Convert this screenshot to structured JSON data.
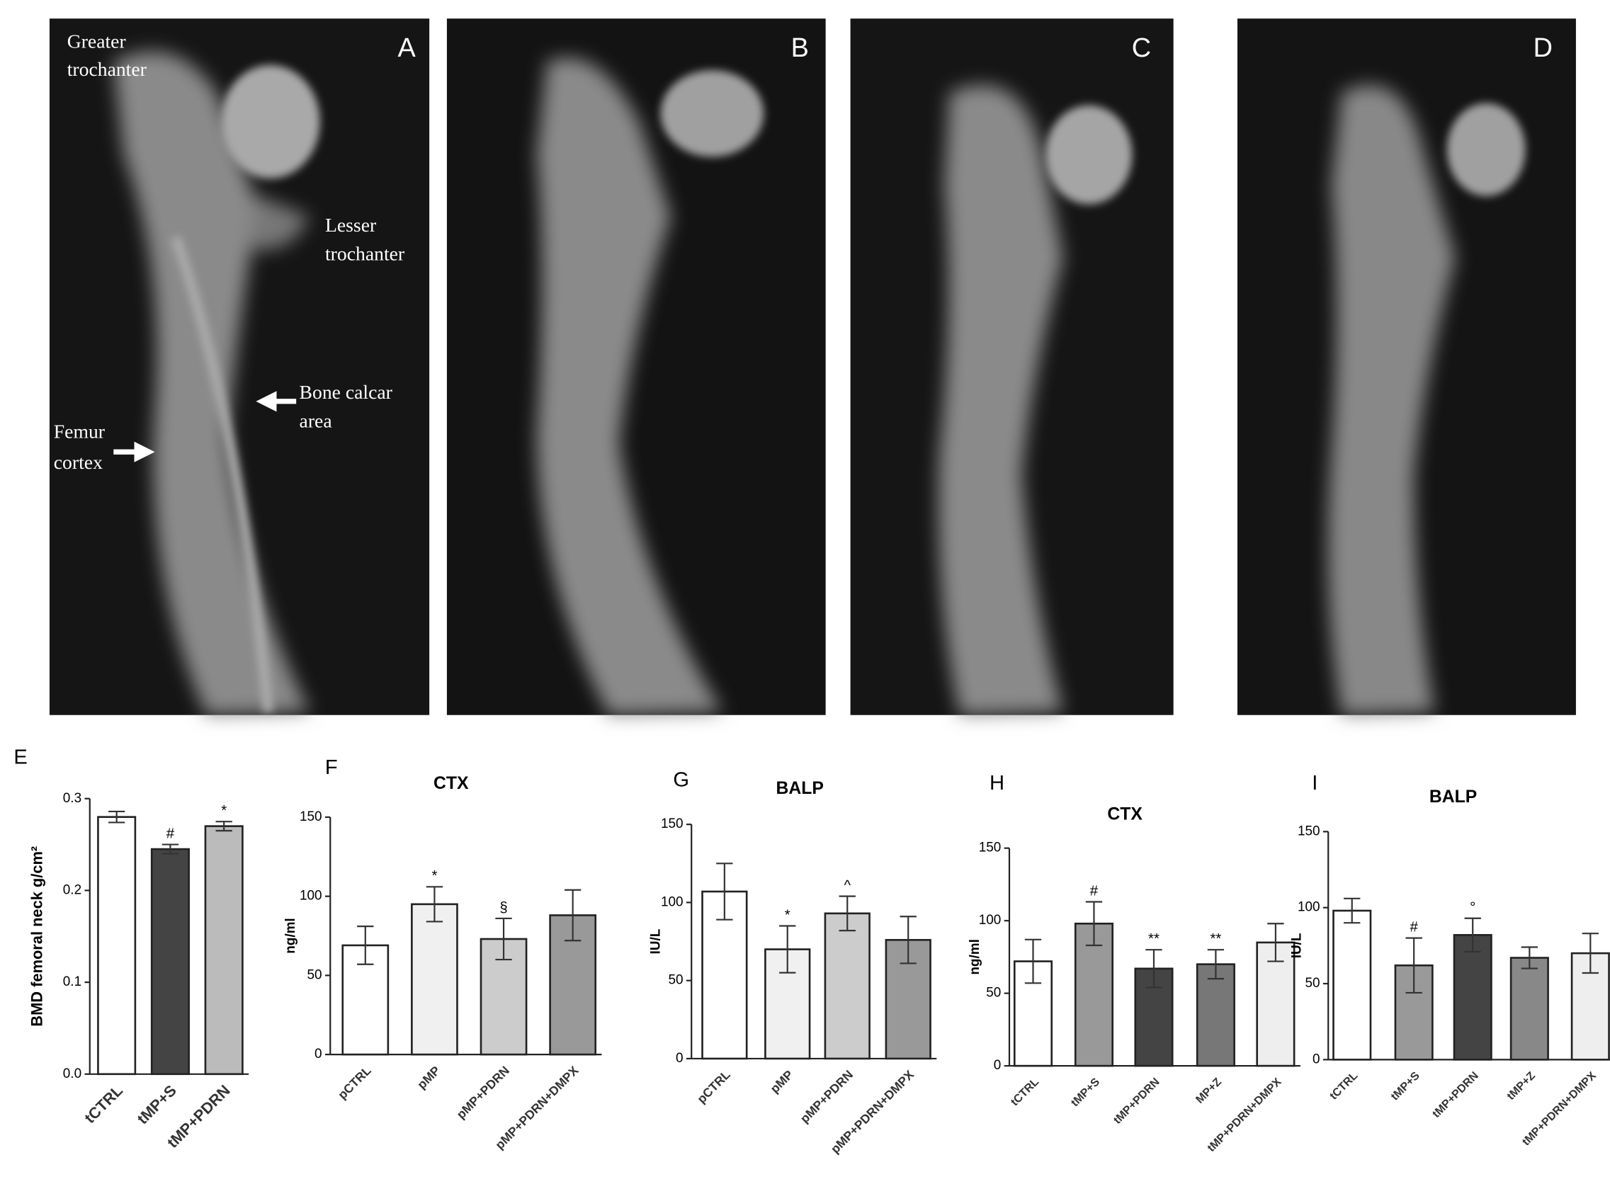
{
  "images": [
    {
      "label": "A",
      "annotations": [
        [
          "Greater",
          "trochanter"
        ],
        [
          "Lesser",
          "trochanter"
        ],
        [
          "Bone calcar",
          "area"
        ],
        [
          "Femur",
          "cortex"
        ]
      ]
    },
    {
      "label": "B"
    },
    {
      "label": "C"
    },
    {
      "label": "D"
    }
  ],
  "chart_data": [
    {
      "type": "bar",
      "panel": "E",
      "ylabel": "BMD femoral neck g/cm²",
      "categories": [
        "tCTRL",
        "tMP+S",
        "tMP+PDRN"
      ],
      "values": [
        0.28,
        0.245,
        0.27
      ],
      "errors": [
        0.006,
        0.005,
        0.005
      ],
      "annotations": [
        null,
        "#",
        "*"
      ],
      "colors": [
        "#ffffff",
        "#444444",
        "#bbbbbb"
      ],
      "ylim": [
        0,
        0.3
      ],
      "yticks": [
        {
          "value": 0,
          "label": "0.0"
        },
        0.1,
        0.2,
        0.3
      ]
    },
    {
      "type": "bar",
      "panel": "F",
      "title": "CTX",
      "ylabel": "ng/ml",
      "categories": [
        "pCTRL",
        "pMP",
        "pMP+PDRN",
        "pMP+PDRN+DMPX"
      ],
      "values": [
        69,
        95,
        73,
        88
      ],
      "errors": [
        12,
        11,
        13,
        16
      ],
      "annotations": [
        null,
        "*",
        "§",
        null
      ],
      "colors": [
        "#ffffff",
        "#f0f0f0",
        "#cccccc",
        "#999999"
      ],
      "ylim": [
        0,
        150
      ],
      "yticks": [
        0,
        50,
        100,
        150
      ]
    },
    {
      "type": "bar",
      "panel": "G",
      "title": "BALP",
      "ylabel": "IU/L",
      "categories": [
        "pCTRL",
        "pMP",
        "pMP+PDRN",
        "pMP+PDRN+DMPX"
      ],
      "values": [
        107,
        70,
        93,
        76
      ],
      "errors": [
        18,
        15,
        11,
        15
      ],
      "annotations": [
        null,
        "*",
        "^",
        null
      ],
      "colors": [
        "#ffffff",
        "#f0f0f0",
        "#cccccc",
        "#999999"
      ],
      "ylim": [
        0,
        150
      ],
      "yticks": [
        0,
        50,
        100,
        150
      ]
    },
    {
      "type": "bar",
      "panel": "H",
      "title": "CTX",
      "ylabel": "ng/ml",
      "categories": [
        "tCTRL",
        "tMP+S",
        "tMP+PDRN",
        "MP+Z",
        "tMP+PDRN+DMPX"
      ],
      "values": [
        72,
        98,
        67,
        70,
        85
      ],
      "errors": [
        15,
        15,
        13,
        10,
        13
      ],
      "annotations": [
        null,
        "#",
        "**",
        "**",
        null
      ],
      "colors": [
        "#ffffff",
        "#999999",
        "#444444",
        "#777777",
        "#eeeeee"
      ],
      "ylim": [
        0,
        150
      ],
      "yticks": [
        0,
        50,
        100,
        150
      ]
    },
    {
      "type": "bar",
      "panel": "I",
      "title": "BALP",
      "ylabel": "IU/L",
      "categories": [
        "tCTRL",
        "tMP+S",
        "tMP+PDRN",
        "tMP+Z",
        "tMP+PDRN+DMPX"
      ],
      "values": [
        98,
        62,
        82,
        67,
        70
      ],
      "errors": [
        8,
        18,
        11,
        7,
        13
      ],
      "annotations": [
        null,
        "#",
        "°",
        null,
        null
      ],
      "colors": [
        "#ffffff",
        "#999999",
        "#444444",
        "#888888",
        "#eeeeee"
      ],
      "ylim": [
        0,
        150
      ],
      "yticks": [
        0,
        50,
        100,
        150
      ]
    }
  ]
}
